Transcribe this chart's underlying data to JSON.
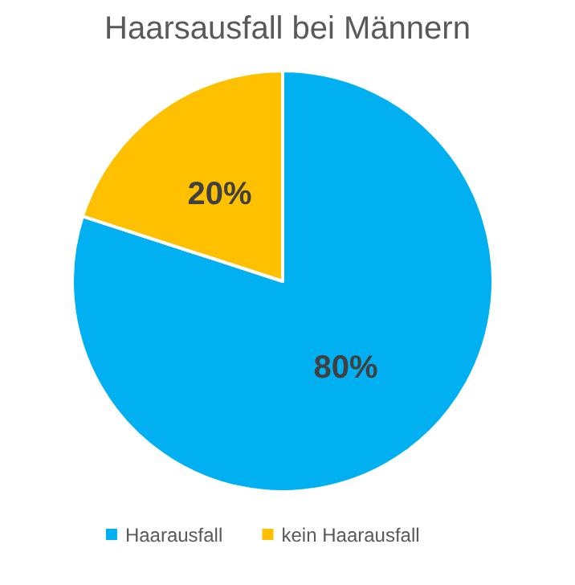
{
  "chart_data": {
    "type": "pie",
    "title": "Haarsausfall bei Männern",
    "categories": [
      "Haarausfall",
      "kein Haarausfall"
    ],
    "values": [
      80,
      20
    ],
    "colors": [
      "#00b0f0",
      "#ffc000"
    ],
    "value_labels": [
      "80%",
      "20%"
    ],
    "legend": "bottom"
  }
}
